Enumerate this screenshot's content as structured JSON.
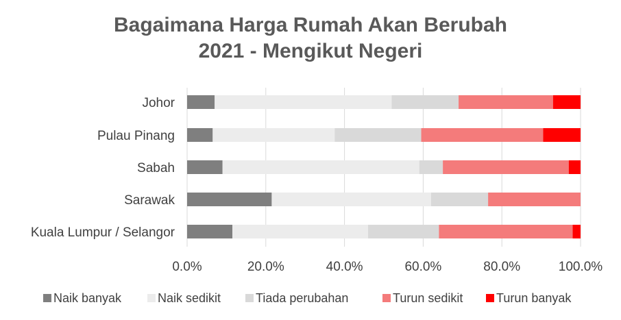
{
  "chart_data": {
    "type": "bar",
    "orientation": "horizontal",
    "stacked": true,
    "title_lines": [
      "Bagaimana Harga Rumah Akan Berubah",
      "2021 - Mengikut Negeri"
    ],
    "categories": [
      "Johor",
      "Pulau Pinang",
      "Sabah",
      "Sarawak",
      "Kuala Lumpur / Selangor"
    ],
    "series": [
      {
        "name": "Naik banyak",
        "color": "#7f7f7f",
        "values": [
          7.0,
          6.5,
          9.0,
          21.5,
          11.5
        ]
      },
      {
        "name": "Naik sedikit",
        "color": "#ececec",
        "values": [
          45.0,
          31.0,
          50.0,
          40.5,
          34.5
        ]
      },
      {
        "name": "Tiada perubahan",
        "color": "#d9d9d9",
        "values": [
          17.0,
          22.0,
          6.0,
          14.5,
          18.0
        ]
      },
      {
        "name": "Turun sedikit",
        "color": "#f47b7b",
        "values": [
          24.0,
          31.0,
          32.0,
          23.5,
          34.0
        ]
      },
      {
        "name": "Turun banyak",
        "color": "#ff0000",
        "values": [
          7.0,
          9.5,
          3.0,
          0.0,
          2.0
        ]
      }
    ],
    "x_ticks": [
      "0.0%",
      "20.0%",
      "40.0%",
      "60.0%",
      "80.0%",
      "100.0%"
    ],
    "xlim": [
      0,
      100
    ],
    "grid": true,
    "legend_position": "bottom"
  }
}
